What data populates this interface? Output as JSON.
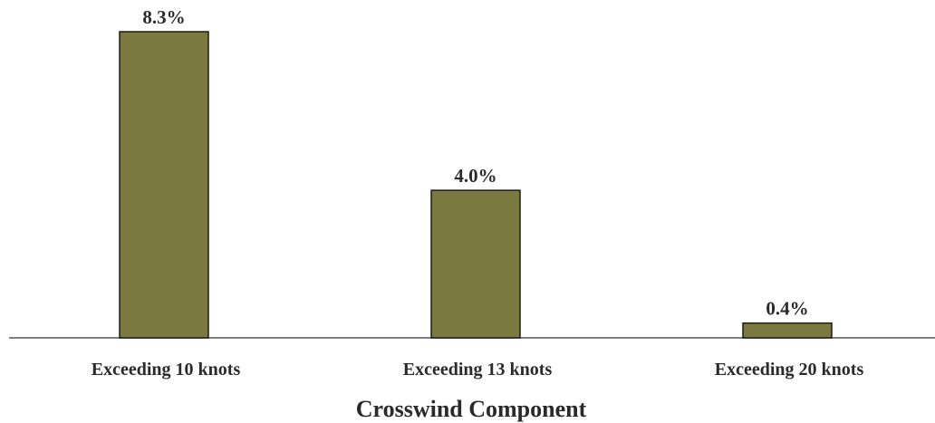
{
  "chart_data": {
    "type": "bar",
    "categories": [
      "Exceeding 10 knots",
      "Exceeding 13 knots",
      "Exceeding 20 knots"
    ],
    "values": [
      8.3,
      4.0,
      0.4
    ],
    "value_labels": [
      "8.3%",
      "4.0%",
      "0.4%"
    ],
    "title": "",
    "xlabel": "Crosswind Component",
    "ylabel": "",
    "ylim": [
      0,
      8.3
    ],
    "grid": false,
    "legend": "none",
    "bar_color": "#7a7a40",
    "bar_edge_color": "#1e1e14",
    "axis_color": "#555555"
  }
}
